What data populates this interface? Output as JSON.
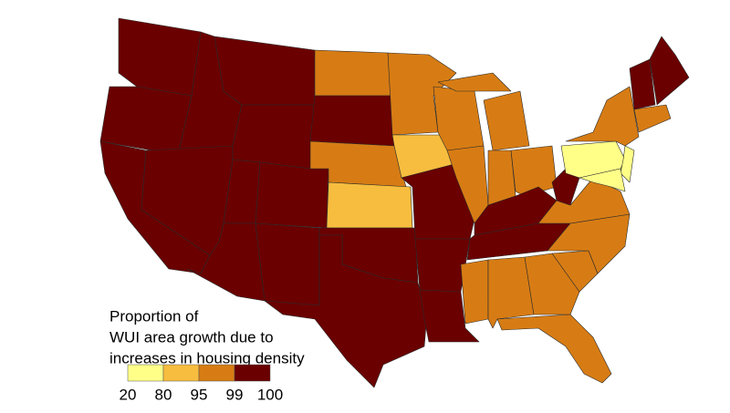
{
  "legend": {
    "title_lines": [
      "Proportion of",
      "WUI area growth due to",
      "increases in housing density"
    ],
    "breaks": [
      20,
      80,
      95,
      99,
      100
    ],
    "colors": [
      "#ffff88",
      "#f7bd3e",
      "#d77c14",
      "#6a0000"
    ]
  }
}
